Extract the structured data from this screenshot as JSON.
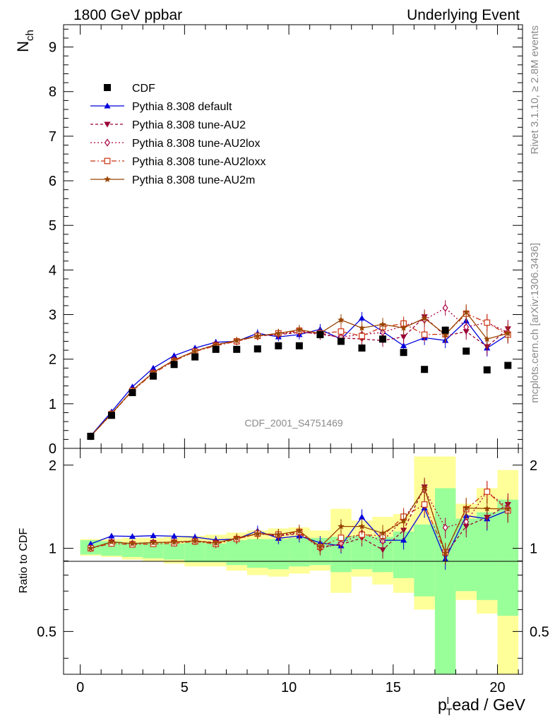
{
  "chart_data": {
    "type": "line",
    "header_left": "1800 GeV ppbar",
    "header_right": "Underlying Event",
    "ylabel_main": "N",
    "ylabel_main_sub": "ch",
    "ylabel_ratio": "Ratio to CDF",
    "xlabel_main": "p",
    "xlabel_sub": "T",
    "xlabel_sup": "l",
    "xlabel_rest": "ead / GeV",
    "analysis_label": "CDF_2001_S4751469",
    "side_label_top": "Rivet 3.1.10, ≥ 2.8M events",
    "side_label_bottom": "mcplots.cern.ch [arXiv:1306.3436]",
    "xlim": [
      -0.8,
      21.2
    ],
    "ylim_main": [
      0,
      9.5
    ],
    "ylim_ratio": [
      0.35,
      2.3
    ],
    "x_ticks": [
      "0",
      "5",
      "10",
      "15",
      "20"
    ],
    "y_ticks_main": [
      "0",
      "1",
      "2",
      "3",
      "4",
      "5",
      "6",
      "7",
      "8",
      "9"
    ],
    "y_ticks_ratio": [
      "0.5",
      "1",
      "2"
    ],
    "legend_position": "top-left",
    "x": [
      0.5,
      1.5,
      2.5,
      3.5,
      4.5,
      5.5,
      6.5,
      7.5,
      8.5,
      9.5,
      10.5,
      11.5,
      12.5,
      13.5,
      14.5,
      15.5,
      16.5,
      17.5,
      18.5,
      19.5,
      20.5
    ],
    "data": {
      "name": "CDF",
      "values": [
        0.27,
        0.74,
        1.25,
        1.62,
        1.88,
        2.05,
        2.22,
        2.22,
        2.23,
        2.3,
        2.3,
        2.55,
        2.4,
        2.25,
        2.45,
        2.15,
        1.77,
        2.65,
        2.18,
        1.76,
        1.86
      ]
    },
    "ratio_bands_inner": [
      [
        0.95,
        1.07
      ],
      [
        0.94,
        1.06
      ],
      [
        0.93,
        1.05
      ],
      [
        0.92,
        1.05
      ],
      [
        0.91,
        1.04
      ],
      [
        0.89,
        1.05
      ],
      [
        0.89,
        1.04
      ],
      [
        0.87,
        1.07
      ],
      [
        0.85,
        1.08
      ],
      [
        0.84,
        1.08
      ],
      [
        0.86,
        1.09
      ],
      [
        0.87,
        1.09
      ],
      [
        0.82,
        1.1
      ],
      [
        0.84,
        1.11
      ],
      [
        0.82,
        1.1
      ],
      [
        0.78,
        1.15
      ],
      [
        0.67,
        1.22
      ],
      [
        0.35,
        1.65
      ],
      [
        0.7,
        1.28
      ],
      [
        0.65,
        1.35
      ],
      [
        0.57,
        1.5
      ]
    ],
    "ratio_bands_outer": [
      [
        0.94,
        1.08
      ],
      [
        0.93,
        1.08
      ],
      [
        0.91,
        1.09
      ],
      [
        0.9,
        1.09
      ],
      [
        0.88,
        1.1
      ],
      [
        0.86,
        1.11
      ],
      [
        0.86,
        1.12
      ],
      [
        0.83,
        1.14
      ],
      [
        0.8,
        1.16
      ],
      [
        0.79,
        1.18
      ],
      [
        0.81,
        1.19
      ],
      [
        0.83,
        1.16
      ],
      [
        0.69,
        1.39
      ],
      [
        0.79,
        1.26
      ],
      [
        0.74,
        1.3
      ],
      [
        0.69,
        1.33
      ],
      [
        0.6,
        2.15
      ],
      [
        0.35,
        2.15
      ],
      [
        0.65,
        1.45
      ],
      [
        0.58,
        1.65
      ],
      [
        0.35,
        1.92
      ]
    ],
    "series": [
      {
        "name": "Pythia 8.308 default",
        "color": "#0000dd",
        "dash": "",
        "marker": "triangle-up",
        "values": [
          0.28,
          0.82,
          1.38,
          1.8,
          2.08,
          2.25,
          2.38,
          2.4,
          2.58,
          2.5,
          2.55,
          2.67,
          2.45,
          2.92,
          2.62,
          2.3,
          2.48,
          2.42,
          2.86,
          2.25,
          2.55
        ]
      },
      {
        "name": "Pythia 8.308 tune-AU2",
        "color": "#990033",
        "dash": "4,3",
        "marker": "triangle-down",
        "values": [
          0.27,
          0.78,
          1.3,
          1.7,
          1.98,
          2.18,
          2.33,
          2.4,
          2.52,
          2.55,
          2.6,
          2.58,
          2.48,
          2.45,
          2.42,
          2.5,
          2.95,
          2.52,
          2.62,
          2.28,
          2.68
        ]
      },
      {
        "name": "Pythia 8.308 tune-AU2lox",
        "color": "#aa0044",
        "dash": "2,3",
        "marker": "diamond-open",
        "values": [
          0.27,
          0.78,
          1.3,
          1.7,
          1.98,
          2.18,
          2.32,
          2.4,
          2.52,
          2.56,
          2.62,
          2.55,
          2.5,
          2.55,
          2.6,
          2.75,
          2.88,
          3.15,
          2.72,
          2.82,
          2.6
        ]
      },
      {
        "name": "Pythia 8.308 tune-AU2loxx",
        "color": "#cc3311",
        "dash": "7,3,2,3",
        "marker": "square-open",
        "values": [
          0.27,
          0.77,
          1.29,
          1.68,
          1.96,
          2.17,
          2.3,
          2.4,
          2.52,
          2.58,
          2.64,
          2.58,
          2.62,
          2.52,
          2.72,
          2.8,
          2.55,
          2.56,
          3.02,
          2.82,
          2.55
        ]
      },
      {
        "name": "Pythia 8.308 tune-AU2m",
        "color": "#994400",
        "dash": "",
        "marker": "star",
        "values": [
          0.27,
          0.78,
          1.3,
          1.7,
          1.98,
          2.18,
          2.32,
          2.42,
          2.52,
          2.58,
          2.66,
          2.58,
          2.88,
          2.7,
          2.78,
          2.7,
          2.92,
          2.55,
          3.05,
          2.45,
          2.58
        ]
      }
    ]
  }
}
